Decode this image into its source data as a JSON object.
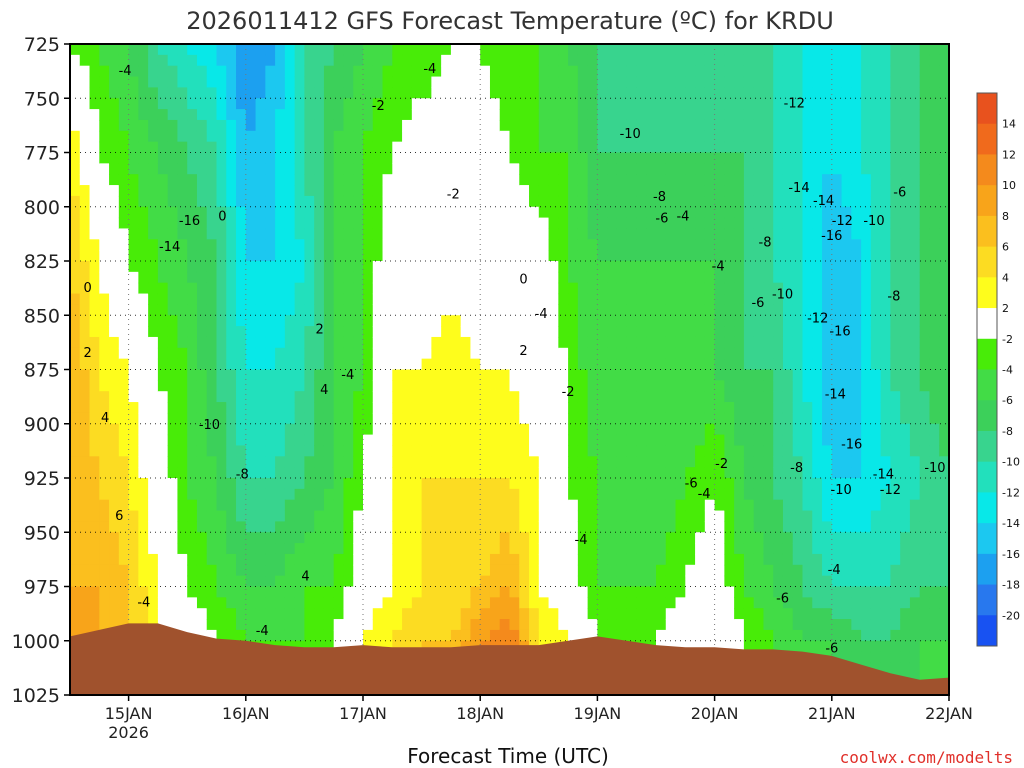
{
  "chart_data": {
    "type": "heatmap",
    "title": "2026011412 GFS Forecast Temperature (ºC) for KRDU",
    "xlabel": "Forecast Time (UTC)",
    "credit": "coolwx.com/modelts",
    "xlim": [
      -0.5,
      7.0
    ],
    "ylim": [
      725,
      1025
    ],
    "y_ticks": [
      725,
      750,
      775,
      800,
      825,
      850,
      875,
      900,
      925,
      950,
      975,
      1000,
      1025
    ],
    "x_ticks": [
      {
        "value": 0,
        "label": "15JAN",
        "sublabel": "2026"
      },
      {
        "value": 1,
        "label": "16JAN"
      },
      {
        "value": 2,
        "label": "17JAN"
      },
      {
        "value": 3,
        "label": "18JAN"
      },
      {
        "value": 4,
        "label": "19JAN"
      },
      {
        "value": 5,
        "label": "20JAN"
      },
      {
        "value": 6,
        "label": "21JAN"
      },
      {
        "value": 7,
        "label": "22JAN"
      }
    ],
    "colorbar": {
      "labels": [
        "14",
        "12",
        "10",
        "8",
        "6",
        "4",
        "2",
        "-2",
        "-4",
        "-6",
        "-8",
        "-10",
        "-12",
        "-14",
        "-16",
        "-18",
        "-20"
      ],
      "colors": [
        "#e8521e",
        "#f06a1c",
        "#f48a1c",
        "#f8a41a",
        "#fbbf1e",
        "#fcdc22",
        "#fefd1c",
        "#ffffff",
        "#48ec08",
        "#42dc46",
        "#3cd05a",
        "#38d48e",
        "#22e0bc",
        "#08e8e8",
        "#1cc8f0",
        "#1ca0f0",
        "#2878ee",
        "#1852f2"
      ]
    },
    "temperature_field_description": "sampled temperature estimates (°C) across forecast time and pressure",
    "pressure_levels": [
      725,
      775,
      825,
      875,
      925,
      975,
      1000
    ],
    "time_samples": [
      -0.5,
      -0.25,
      0,
      0.25,
      0.5,
      0.75,
      1,
      1.25,
      1.5,
      1.75,
      2,
      2.25,
      2.5,
      2.75,
      3,
      3.25,
      3.5,
      3.75,
      4,
      4.25,
      4.5,
      4.75,
      5,
      5.25,
      5.5,
      5.75,
      6,
      6.25,
      6.5,
      6.75,
      7
    ],
    "temperature_grid": [
      [
        -2,
        -4,
        -6,
        -10,
        -12,
        -14,
        -18,
        -16,
        -10,
        -8,
        -6,
        -4,
        -4,
        -2,
        -2,
        -4,
        -4,
        -6,
        -8,
        -10,
        -10,
        -10,
        -10,
        -10,
        -10,
        -12,
        -14,
        -12,
        -10,
        -8,
        -6
      ],
      [
        4,
        -2,
        -4,
        -6,
        -8,
        -10,
        -16,
        -14,
        -10,
        -6,
        -4,
        -2,
        0,
        0,
        0,
        -2,
        -4,
        -4,
        -8,
        -8,
        -8,
        -8,
        -8,
        -8,
        -10,
        -12,
        -14,
        -12,
        -10,
        -8,
        -6
      ],
      [
        6,
        2,
        -2,
        -4,
        -6,
        -8,
        -14,
        -14,
        -12,
        -6,
        -4,
        0,
        0,
        0,
        0,
        0,
        0,
        -4,
        -6,
        -6,
        -6,
        -6,
        -6,
        -8,
        -10,
        -12,
        -16,
        -14,
        -10,
        -8,
        -6
      ],
      [
        8,
        4,
        2,
        -2,
        -4,
        -8,
        -12,
        -12,
        -10,
        -6,
        -4,
        2,
        2,
        4,
        2,
        2,
        0,
        -2,
        -6,
        -6,
        -6,
        -6,
        -6,
        -8,
        -8,
        -12,
        -16,
        -14,
        -10,
        -8,
        -6
      ],
      [
        8,
        6,
        4,
        0,
        -4,
        -6,
        -10,
        -10,
        -8,
        -6,
        -2,
        2,
        4,
        4,
        4,
        4,
        2,
        -2,
        -4,
        -6,
        -6,
        -4,
        -2,
        -6,
        -8,
        -10,
        -14,
        -14,
        -12,
        -10,
        -8
      ],
      [
        8,
        8,
        6,
        2,
        -2,
        -4,
        -6,
        -6,
        -4,
        -4,
        0,
        2,
        4,
        4,
        6,
        8,
        2,
        0,
        -4,
        -4,
        -4,
        -2,
        0,
        -4,
        -6,
        -8,
        -10,
        -10,
        -10,
        -8,
        -8
      ],
      [
        10,
        8,
        6,
        2,
        0,
        -2,
        -4,
        -4,
        -4,
        -2,
        2,
        4,
        6,
        6,
        10,
        12,
        4,
        2,
        -2,
        -4,
        -2,
        0,
        2,
        -2,
        -4,
        -6,
        -6,
        -8,
        -8,
        -6,
        -6
      ]
    ],
    "contour_labels": [
      {
        "text": "-4",
        "t": -0.03,
        "p": 737
      },
      {
        "text": "-4",
        "t": 2.57,
        "p": 736
      },
      {
        "text": "-2",
        "t": 2.13,
        "p": 753
      },
      {
        "text": "-10",
        "t": 4.28,
        "p": 766
      },
      {
        "text": "-12",
        "t": 5.68,
        "p": 752
      },
      {
        "text": "-2",
        "t": 2.77,
        "p": 794
      },
      {
        "text": "-8",
        "t": 4.53,
        "p": 795
      },
      {
        "text": "-14",
        "t": 5.72,
        "p": 791
      },
      {
        "text": "-14",
        "t": 5.93,
        "p": 797
      },
      {
        "text": "-6",
        "t": 4.55,
        "p": 805
      },
      {
        "text": "-4",
        "t": 4.73,
        "p": 804
      },
      {
        "text": "-16",
        "t": 0.52,
        "p": 806
      },
      {
        "text": "0",
        "t": 0.8,
        "p": 804
      },
      {
        "text": "-12",
        "t": 6.09,
        "p": 806
      },
      {
        "text": "-10",
        "t": 6.36,
        "p": 806
      },
      {
        "text": "-6",
        "t": 6.58,
        "p": 793
      },
      {
        "text": "-14",
        "t": 0.35,
        "p": 818
      },
      {
        "text": "-8",
        "t": 5.43,
        "p": 816
      },
      {
        "text": "-16",
        "t": 6.0,
        "p": 813
      },
      {
        "text": "-4",
        "t": 5.03,
        "p": 827
      },
      {
        "text": "0",
        "t": -0.35,
        "p": 837
      },
      {
        "text": "0",
        "t": 3.37,
        "p": 833
      },
      {
        "text": "-8",
        "t": 6.53,
        "p": 841
      },
      {
        "text": "-10",
        "t": 5.58,
        "p": 840
      },
      {
        "text": "-6",
        "t": 5.37,
        "p": 844
      },
      {
        "text": "-4",
        "t": 3.52,
        "p": 849
      },
      {
        "text": "-12",
        "t": 5.88,
        "p": 851
      },
      {
        "text": "2",
        "t": 1.63,
        "p": 856
      },
      {
        "text": "-16",
        "t": 6.07,
        "p": 857
      },
      {
        "text": "2",
        "t": -0.35,
        "p": 867
      },
      {
        "text": "2",
        "t": 3.37,
        "p": 866
      },
      {
        "text": "-4",
        "t": 1.87,
        "p": 877
      },
      {
        "text": "4",
        "t": 1.67,
        "p": 884
      },
      {
        "text": "-2",
        "t": 3.75,
        "p": 885
      },
      {
        "text": "-14",
        "t": 6.03,
        "p": 886
      },
      {
        "text": "4",
        "t": -0.2,
        "p": 897
      },
      {
        "text": "-10",
        "t": 0.69,
        "p": 900
      },
      {
        "text": "-16",
        "t": 6.17,
        "p": 909
      },
      {
        "text": "-2",
        "t": 5.06,
        "p": 918
      },
      {
        "text": "-10",
        "t": 6.88,
        "p": 920
      },
      {
        "text": "-8",
        "t": 0.97,
        "p": 923
      },
      {
        "text": "-8",
        "t": 5.7,
        "p": 920
      },
      {
        "text": "-14",
        "t": 6.44,
        "p": 923
      },
      {
        "text": "-6",
        "t": 4.8,
        "p": 927
      },
      {
        "text": "-12",
        "t": 6.5,
        "p": 930
      },
      {
        "text": "-10",
        "t": 6.08,
        "p": 930
      },
      {
        "text": "-4",
        "t": 4.91,
        "p": 932
      },
      {
        "text": "6",
        "t": -0.08,
        "p": 942
      },
      {
        "text": "-4",
        "t": 3.86,
        "p": 953
      },
      {
        "text": "-4",
        "t": 6.02,
        "p": 967
      },
      {
        "text": "4",
        "t": 1.51,
        "p": 970
      },
      {
        "text": "-4",
        "t": 0.13,
        "p": 982
      },
      {
        "text": "-6",
        "t": 5.58,
        "p": 980
      },
      {
        "text": "-4",
        "t": 1.14,
        "p": 995
      },
      {
        "text": "-6",
        "t": 6.0,
        "p": 1003
      }
    ],
    "terrain_pressure": [
      [
        -0.5,
        998
      ],
      [
        -0.25,
        995
      ],
      [
        0,
        992
      ],
      [
        0.25,
        992
      ],
      [
        0.5,
        996
      ],
      [
        0.75,
        999
      ],
      [
        1,
        1000
      ],
      [
        1.25,
        1002
      ],
      [
        1.5,
        1003
      ],
      [
        1.75,
        1003
      ],
      [
        2,
        1002
      ],
      [
        2.25,
        1003
      ],
      [
        2.5,
        1003
      ],
      [
        2.75,
        1003
      ],
      [
        3,
        1002
      ],
      [
        3.25,
        1002
      ],
      [
        3.5,
        1002
      ],
      [
        3.75,
        1000
      ],
      [
        4,
        998
      ],
      [
        4.25,
        1000
      ],
      [
        4.5,
        1002
      ],
      [
        4.75,
        1003
      ],
      [
        5,
        1003
      ],
      [
        5.25,
        1004
      ],
      [
        5.5,
        1004
      ],
      [
        5.75,
        1005
      ],
      [
        6,
        1007
      ],
      [
        6.25,
        1011
      ],
      [
        6.5,
        1015
      ],
      [
        6.75,
        1018
      ],
      [
        7,
        1017
      ]
    ]
  }
}
